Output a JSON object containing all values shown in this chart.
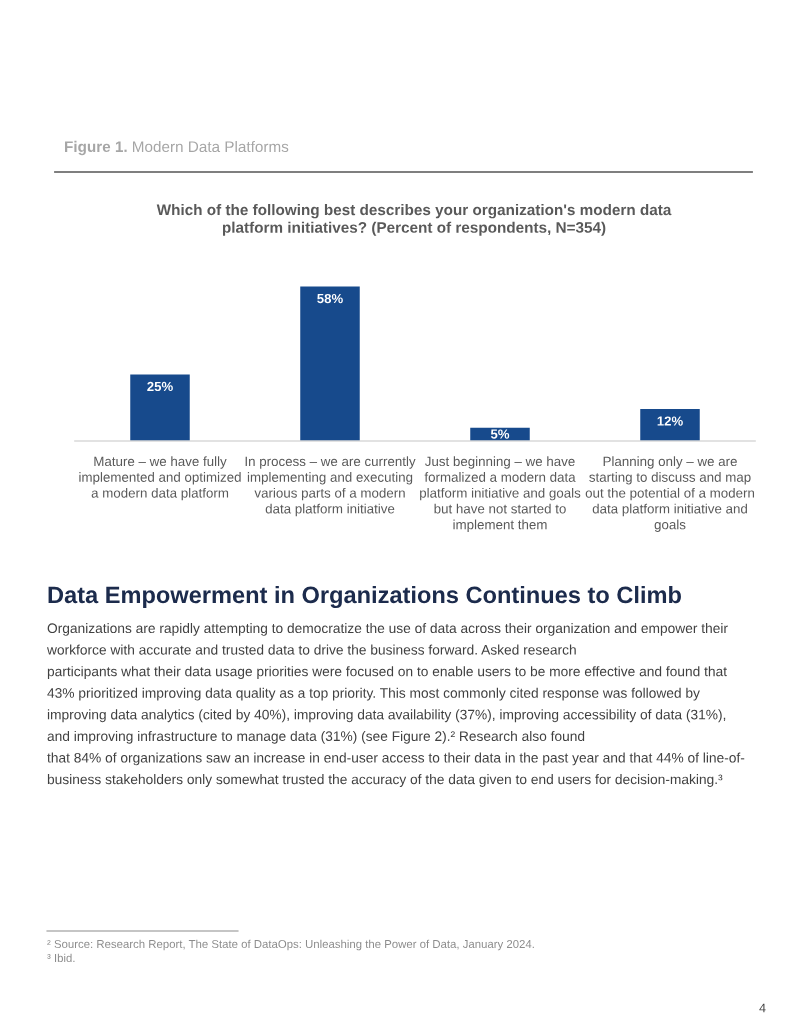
{
  "chart_data": {
    "type": "bar",
    "title": "Which of the following best describes your organization's modern data\nplatform initiatives? (Percent of respondents, N=354)",
    "categories": [
      "Mature – we have fully\nimplemented and optimized\na modern data platform",
      "In process – we are currently\nimplementing and executing\nvarious parts of a modern\ndata platform initiative",
      "Just beginning – we have\nformalized a modern data\nplatform initiative and goals\nbut have not started to\nimplement them",
      "Planning only – we are\nstarting to discuss and map\nout the potential of a modern\ndata platform initiative and\ngoals"
    ],
    "values": [
      25,
      58,
      5,
      12
    ],
    "color": "#174a8c",
    "value_labels": [
      "25%",
      "58%",
      "5%",
      "12%"
    ],
    "tick_labels": "x",
    "annotations": [
      "Figure 1.",
      "Modern Data Platforms",
      "Data Empowerment in Organizations Continues to Climb",
      "Organizations are rapidly attempting to democratize the use of data across their organization and empower their\nworkforce with accurate and trusted data to drive the business forward. Asked research\nparticipants what their data usage priorities were focused on to enable users to be more effective and found that\n43% prioritized improving data quality as a top priority. This most commonly cited response was followed by\nimproving data analytics (cited by 40%), improving data availability (37%), improving accessibility of data (31%),\nand improving infrastructure to manage data (31%) (see Figure 2).² Research also found\nthat 84% of organizations saw an increase in end-user access to their data in the past year and that 44% of line-of-\nbusiness stakeholders only somewhat trusted the accuracy of the data given to end users for decision-making.³",
      "² Source: Research Report, The State of DataOps: Unleashing the Power of Data, January 2024.",
      "³ Ibid.",
      "4"
    ]
  }
}
